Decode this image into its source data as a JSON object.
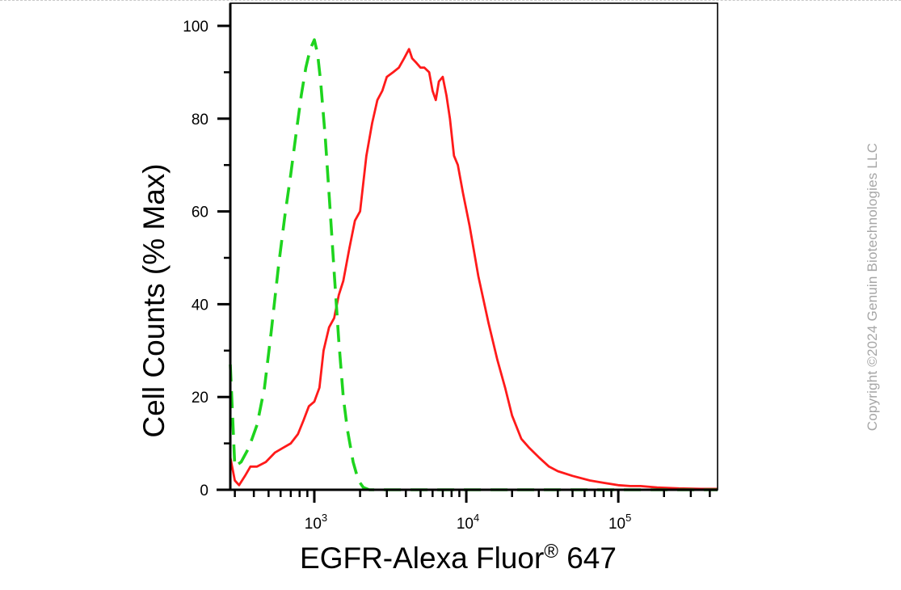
{
  "chart_data": {
    "type": "line",
    "title": "",
    "xlabel": "EGFR-Alexa Fluor",
    "xlabel_sup": "®",
    "xlabel_suffix": " 647",
    "ylabel": "Cell Counts (% Max)",
    "xscale": "log",
    "xlim": [
      280,
      450000
    ],
    "ylim": [
      0,
      102
    ],
    "yticks": [
      0,
      20,
      40,
      60,
      80,
      100
    ],
    "xticks": [
      {
        "value": 1000,
        "base": "10",
        "exp": "3"
      },
      {
        "value": 10000,
        "base": "10",
        "exp": "4"
      },
      {
        "value": 100000,
        "base": "10",
        "exp": "5"
      }
    ],
    "grid": false,
    "legend": "none",
    "series": [
      {
        "color": "#ff1a1a",
        "style": "solid",
        "x": [
          280,
          300,
          320,
          350,
          380,
          420,
          480,
          550,
          620,
          700,
          780,
          850,
          920,
          1000,
          1080,
          1150,
          1250,
          1350,
          1450,
          1550,
          1700,
          1850,
          2000,
          2200,
          2400,
          2600,
          2800,
          3000,
          3300,
          3600,
          3900,
          4200,
          4400,
          4700,
          5000,
          5300,
          5700,
          6000,
          6300,
          6600,
          7000,
          7400,
          7800,
          8300,
          8800,
          9500,
          10500,
          12000,
          14000,
          16000,
          18000,
          20000,
          23000,
          26000,
          30000,
          35000,
          40000,
          50000,
          65000,
          80000,
          100000,
          120000,
          140000,
          180000,
          250000,
          350000,
          450000
        ],
        "y": [
          7,
          2,
          1,
          3,
          5,
          5,
          6,
          8,
          9,
          10,
          12,
          15,
          18,
          19,
          22,
          30,
          35,
          37,
          42,
          45,
          52,
          58,
          60,
          72,
          79,
          84,
          86,
          89,
          90,
          91,
          93,
          95,
          93,
          92,
          91,
          91,
          90,
          86,
          84,
          88,
          89,
          85,
          80,
          72,
          70,
          64,
          57,
          46,
          36,
          28,
          22,
          16,
          11,
          9,
          7,
          5,
          4,
          3,
          2,
          1.5,
          1,
          0.8,
          0.8,
          0.5,
          0.3,
          0.2,
          0.2
        ]
      },
      {
        "color": "#1ed41e",
        "style": "dashed",
        "x": [
          280,
          300,
          330,
          370,
          420,
          470,
          520,
          580,
          640,
          700,
          760,
          820,
          880,
          940,
          1000,
          1050,
          1100,
          1180,
          1260,
          1350,
          1450,
          1550,
          1650,
          1800,
          1950,
          2100,
          2300,
          2600,
          3000,
          5000,
          10000,
          50000,
          100000,
          450000
        ],
        "y": [
          27,
          5,
          6,
          9,
          14,
          22,
          34,
          48,
          59,
          68,
          77,
          85,
          91,
          95,
          97,
          94,
          88,
          76,
          62,
          47,
          32,
          20,
          13,
          6,
          2,
          0.5,
          0,
          0,
          0,
          0,
          0,
          0,
          0,
          0
        ]
      }
    ]
  },
  "copyright": "Copyright ©2024 Genuin Biotechnologies LLC"
}
